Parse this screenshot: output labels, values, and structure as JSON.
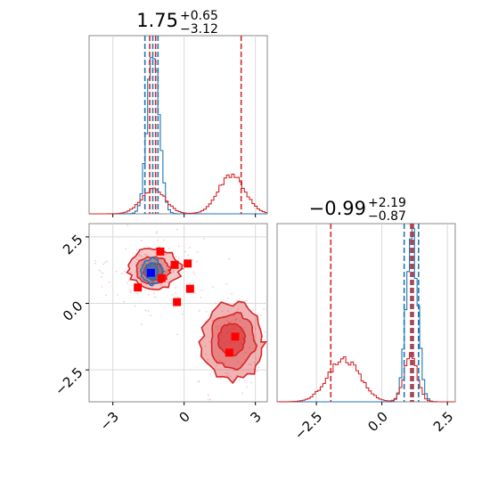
{
  "chart_data": [
    {
      "type": "histogram",
      "panel": "top-left",
      "title": {
        "value": "1.75",
        "plus": "+0.65",
        "minus": "−3.12"
      },
      "x_range": [
        -4,
        3.5
      ],
      "series": [
        {
          "name": "",
          "color": "#1f77b4",
          "shape": [
            {
              "center": -1.3,
              "sigma": 0.25,
              "amp": 1.0
            }
          ],
          "quantiles": [
            -1.65,
            -1.32,
            -1.1
          ]
        },
        {
          "name": "",
          "color": "#d62728",
          "shape": [
            {
              "center": -1.3,
              "sigma": 0.5,
              "amp": 0.15
            },
            {
              "center": 2.0,
              "sigma": 0.55,
              "amp": 0.24
            }
          ],
          "quantiles": [
            -1.45,
            -1.2,
            2.4
          ]
        }
      ],
      "grid": true
    },
    {
      "type": "scatter_contour",
      "panel": "bottom-left",
      "x_range": [
        -4,
        3.5
      ],
      "y_range": [
        -3.7,
        3.0
      ],
      "x_ticks": [
        {
          "value": -3,
          "label": "−3"
        },
        {
          "value": 0,
          "label": "0"
        },
        {
          "value": 3,
          "label": "3"
        }
      ],
      "y_ticks": [
        {
          "value": 2.5,
          "label": "2.5"
        },
        {
          "value": 0.0,
          "label": "0.0"
        },
        {
          "value": -2.5,
          "label": "−2.5"
        }
      ],
      "red_markers": [
        {
          "x": -1.0,
          "y": 1.95
        },
        {
          "x": -0.4,
          "y": 1.45
        },
        {
          "x": 0.15,
          "y": 1.5
        },
        {
          "x": -0.95,
          "y": 0.95
        },
        {
          "x": -1.95,
          "y": 0.6
        },
        {
          "x": -0.3,
          "y": 0.05
        },
        {
          "x": 0.25,
          "y": 0.55
        },
        {
          "x": 2.15,
          "y": -1.25
        },
        {
          "x": 1.9,
          "y": -1.85
        }
      ],
      "blue_marker": {
        "x": -1.4,
        "y": 1.15
      },
      "grid": true
    },
    {
      "type": "histogram",
      "panel": "bottom-right",
      "title": {
        "value": "−0.99",
        "plus": "+2.19",
        "minus": "−0.87"
      },
      "x_range": [
        -4,
        2.8
      ],
      "x_ticks": [
        {
          "value": -2.5,
          "label": "−2.5"
        },
        {
          "value": 0.0,
          "label": "0.0"
        },
        {
          "value": 2.5,
          "label": "2.5"
        }
      ],
      "series": [
        {
          "name": "",
          "color": "#1f77b4",
          "shape": [
            {
              "center": 1.15,
              "sigma": 0.22,
              "amp": 1.0
            }
          ],
          "quantiles": [
            0.85,
            1.15,
            1.4
          ]
        },
        {
          "name": "",
          "color": "#d62728",
          "shape": [
            {
              "center": 1.1,
              "sigma": 0.25,
              "amp": 0.28
            },
            {
              "center": -1.45,
              "sigma": 0.6,
              "amp": 0.26
            }
          ],
          "quantiles": [
            -1.95,
            1.1,
            1.2
          ]
        }
      ],
      "grid": true
    }
  ]
}
